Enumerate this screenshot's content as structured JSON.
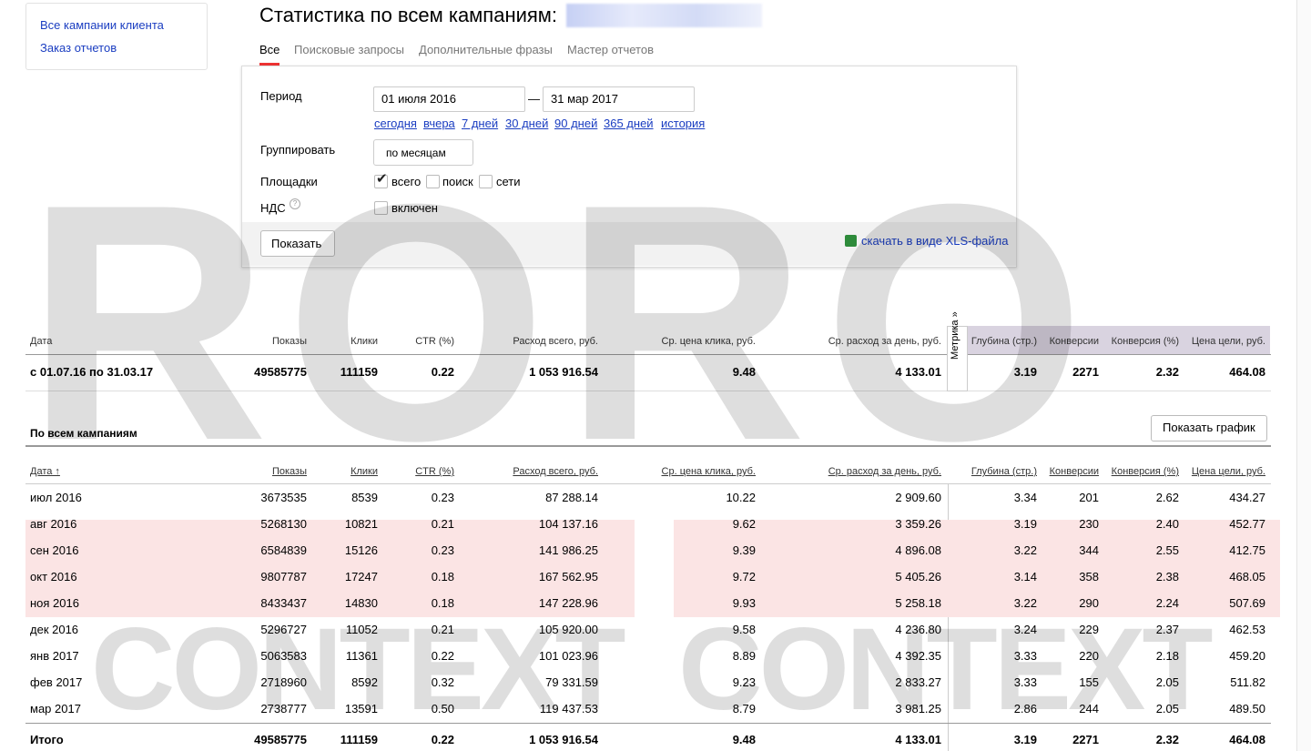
{
  "sidebar": {
    "links": [
      "Все кампании клиента",
      "Заказ отчетов"
    ]
  },
  "header": {
    "title": "Статистика по всем кампаниям:"
  },
  "tabs": [
    "Все",
    "Поисковые запросы",
    "Дополнительные фразы",
    "Мастер отчетов"
  ],
  "form": {
    "period_label": "Период",
    "date_from": "01 июля 2016",
    "dash": "—",
    "date_to": "31 мар 2017",
    "quick_links": [
      "сегодня",
      "вчера",
      "7 дней",
      "30 дней",
      "90 дней",
      "365 дней",
      "история"
    ],
    "group_label": "Группировать",
    "group_value": "по месяцам",
    "platforms_label": "Площадки",
    "platforms": [
      "всего",
      "поиск",
      "сети"
    ],
    "vat_label": "НДС",
    "vat_option": "включен",
    "show_button": "Показать",
    "download": "скачать в виде XLS-файла"
  },
  "summary": {
    "headers": [
      "Дата",
      "Показы",
      "Клики",
      "CTR (%)",
      "Расход всего, руб.",
      "Ср. цена клика, руб.",
      "Ср. расход за день, руб.",
      "Глубина (стр.)",
      "Конверсии",
      "Конверсия (%)",
      "Цена цели, руб."
    ],
    "metrika": "Метрика »",
    "row": [
      "с 01.07.16 по 31.03.17",
      "49585775",
      "111159",
      "0.22",
      "1 053 916.54",
      "9.48",
      "4 133.01",
      "3.19",
      "2271",
      "2.32",
      "464.08"
    ]
  },
  "campaigns": {
    "title": "По всем кампаниям",
    "chart_button": "Показать график",
    "headers": [
      "Дата ↑",
      "Показы",
      "Клики",
      "CTR (%)",
      "Расход всего, руб.",
      "Ср. цена клика, руб.",
      "Ср. расход за день, руб.",
      "Глубина (стр.)",
      "Конверсии",
      "Конверсия (%)",
      "Цена цели, руб."
    ],
    "rows": [
      [
        "июл 2016",
        "3673535",
        "8539",
        "0.23",
        "87 288.14",
        "10.22",
        "2 909.60",
        "3.34",
        "201",
        "2.62",
        "434.27"
      ],
      [
        "авг 2016",
        "5268130",
        "10821",
        "0.21",
        "104 137.16",
        "9.62",
        "3 359.26",
        "3.19",
        "230",
        "2.40",
        "452.77"
      ],
      [
        "сен 2016",
        "6584839",
        "15126",
        "0.23",
        "141 986.25",
        "9.39",
        "4 896.08",
        "3.22",
        "344",
        "2.55",
        "412.75"
      ],
      [
        "окт 2016",
        "9807787",
        "17247",
        "0.18",
        "167 562.95",
        "9.72",
        "5 405.26",
        "3.14",
        "358",
        "2.38",
        "468.05"
      ],
      [
        "ноя 2016",
        "8433437",
        "14830",
        "0.18",
        "147 228.96",
        "9.93",
        "5 258.18",
        "3.22",
        "290",
        "2.24",
        "507.69"
      ],
      [
        "дек 2016",
        "5296727",
        "11052",
        "0.21",
        "105 920.00",
        "9.58",
        "4 236.80",
        "3.24",
        "229",
        "2.37",
        "462.53"
      ],
      [
        "янв 2017",
        "5063583",
        "11361",
        "0.22",
        "101 023.96",
        "8.89",
        "4 392.35",
        "3.33",
        "220",
        "2.18",
        "459.20"
      ],
      [
        "фев 2017",
        "2718960",
        "8592",
        "0.32",
        "79 331.59",
        "9.23",
        "2 833.27",
        "3.33",
        "155",
        "2.05",
        "511.82"
      ],
      [
        "мар 2017",
        "2738777",
        "13591",
        "0.50",
        "119 437.53",
        "8.79",
        "3 981.25",
        "2.86",
        "244",
        "2.05",
        "489.50"
      ]
    ],
    "total": [
      "Итого",
      "49585775",
      "111159",
      "0.22",
      "1 053 916.54",
      "9.48",
      "4 133.01",
      "3.19",
      "2271",
      "2.32",
      "464.08"
    ]
  },
  "watermark": {
    "top": "RORO",
    "bottom": [
      "CONTEXT",
      "CONTEXT"
    ]
  }
}
